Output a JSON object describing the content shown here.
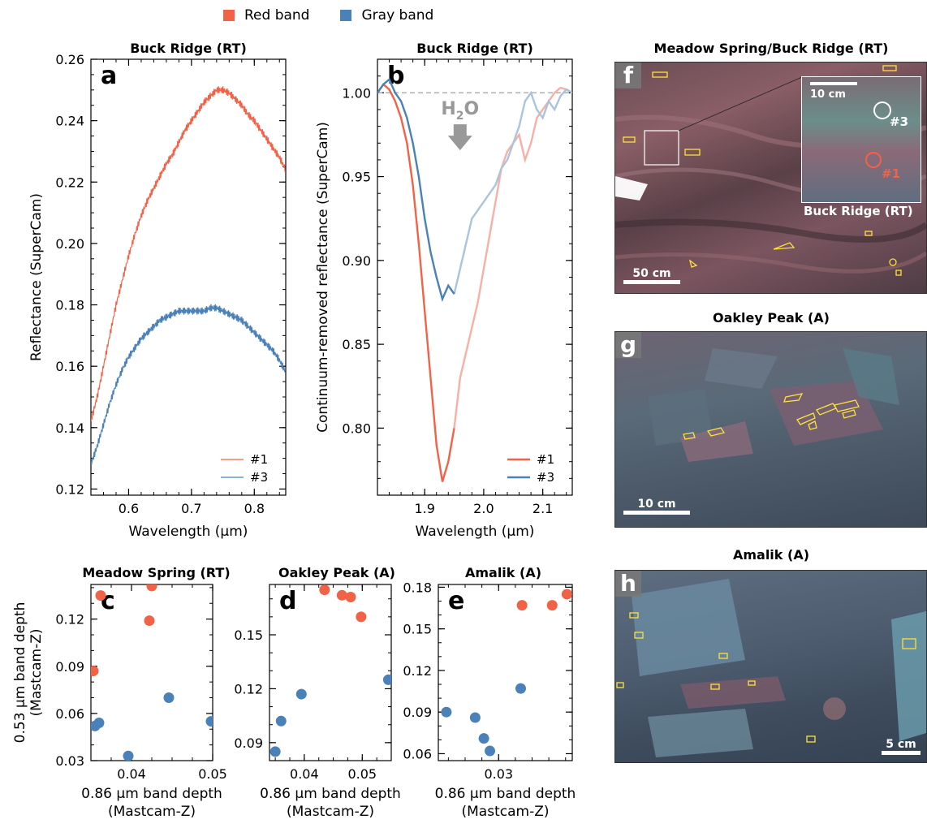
{
  "legend": {
    "items": [
      {
        "label": "Red band",
        "color": "#f26247"
      },
      {
        "label": "Gray band",
        "color": "#4a81b8"
      }
    ]
  },
  "colors": {
    "red": "#f26247",
    "blue": "#4a81b8",
    "red_light": "#f6b0a6",
    "blue_light": "#a9c4dc"
  },
  "chart_data": [
    {
      "panel": "a",
      "type": "line",
      "title": "Buck Ridge (RT)",
      "xlabel": "Wavelength (μm)",
      "ylabel": "Reflectance (SuperCam)",
      "xlim": [
        0.54,
        0.85
      ],
      "ylim": [
        0.118,
        0.26
      ],
      "xticks": [
        0.6,
        0.7,
        0.8
      ],
      "yticks": [
        0.12,
        0.14,
        0.16,
        0.18,
        0.2,
        0.22,
        0.24,
        0.26
      ],
      "series": [
        {
          "name": "#1",
          "color": "#f26247",
          "x": [
            0.54,
            0.55,
            0.56,
            0.57,
            0.58,
            0.59,
            0.6,
            0.61,
            0.62,
            0.63,
            0.64,
            0.65,
            0.66,
            0.67,
            0.68,
            0.69,
            0.7,
            0.71,
            0.72,
            0.73,
            0.74,
            0.75,
            0.76,
            0.77,
            0.78,
            0.79,
            0.8,
            0.81,
            0.82,
            0.83,
            0.84,
            0.85
          ],
          "y": [
            0.142,
            0.15,
            0.16,
            0.17,
            0.18,
            0.188,
            0.196,
            0.203,
            0.209,
            0.214,
            0.218,
            0.222,
            0.226,
            0.229,
            0.233,
            0.237,
            0.24,
            0.243,
            0.246,
            0.248,
            0.25,
            0.25,
            0.249,
            0.247,
            0.245,
            0.242,
            0.24,
            0.237,
            0.234,
            0.231,
            0.228,
            0.224
          ]
        },
        {
          "name": "#3",
          "color": "#4a81b8",
          "x": [
            0.54,
            0.55,
            0.56,
            0.57,
            0.58,
            0.59,
            0.6,
            0.61,
            0.62,
            0.63,
            0.64,
            0.65,
            0.66,
            0.67,
            0.68,
            0.69,
            0.7,
            0.71,
            0.72,
            0.73,
            0.74,
            0.75,
            0.76,
            0.77,
            0.78,
            0.79,
            0.8,
            0.81,
            0.82,
            0.83,
            0.84,
            0.85
          ],
          "y": [
            0.128,
            0.134,
            0.141,
            0.148,
            0.154,
            0.159,
            0.163,
            0.166,
            0.169,
            0.171,
            0.173,
            0.175,
            0.176,
            0.177,
            0.178,
            0.178,
            0.178,
            0.178,
            0.178,
            0.179,
            0.179,
            0.178,
            0.177,
            0.176,
            0.175,
            0.173,
            0.171,
            0.169,
            0.167,
            0.165,
            0.162,
            0.158
          ]
        }
      ],
      "legend_position": "bottom-right"
    },
    {
      "panel": "b",
      "type": "line",
      "title": "Buck Ridge (RT)",
      "xlabel": "Wavelength (μm)",
      "ylabel": "Continuum-removed reflectance (SuperCam)",
      "xlim": [
        1.82,
        2.15
      ],
      "ylim": [
        0.76,
        1.02
      ],
      "xticks": [
        1.9,
        2.0,
        2.1
      ],
      "yticks": [
        0.8,
        0.85,
        0.9,
        0.95,
        1.0
      ],
      "reference_line": 1.0,
      "annotation": "H2O",
      "series": [
        {
          "name": "#1",
          "color": "#f26247",
          "x": [
            1.82,
            1.83,
            1.84,
            1.85,
            1.86,
            1.87,
            1.88,
            1.89,
            1.9,
            1.91,
            1.92,
            1.93,
            1.94,
            1.95,
            1.96,
            1.97,
            1.98,
            1.99,
            2.0,
            2.01,
            2.02,
            2.03,
            2.04,
            2.05,
            2.06,
            2.07,
            2.08,
            2.09,
            2.1,
            2.11,
            2.12,
            2.13,
            2.14,
            2.15
          ],
          "y": [
            1.0,
            1.005,
            1.002,
            0.995,
            0.985,
            0.97,
            0.945,
            0.91,
            0.87,
            0.83,
            0.79,
            0.768,
            0.78,
            0.8,
            0.83,
            0.845,
            0.86,
            0.875,
            0.895,
            0.915,
            0.935,
            0.955,
            0.965,
            0.97,
            0.975,
            0.96,
            0.97,
            0.985,
            0.99,
            0.995,
            1.0,
            1.003,
            1.002,
            1.0
          ]
        },
        {
          "name": "#3",
          "color": "#4a81b8",
          "x": [
            1.82,
            1.83,
            1.84,
            1.85,
            1.86,
            1.87,
            1.88,
            1.89,
            1.9,
            1.91,
            1.92,
            1.93,
            1.94,
            1.95,
            1.96,
            1.97,
            1.98,
            1.99,
            2.0,
            2.01,
            2.02,
            2.03,
            2.04,
            2.05,
            2.06,
            2.07,
            2.08,
            2.09,
            2.1,
            2.11,
            2.12,
            2.13,
            2.14,
            2.15
          ],
          "y": [
            1.0,
            1.005,
            1.008,
            1.0,
            0.995,
            0.985,
            0.97,
            0.95,
            0.925,
            0.905,
            0.89,
            0.877,
            0.885,
            0.88,
            0.895,
            0.91,
            0.925,
            0.93,
            0.935,
            0.94,
            0.945,
            0.955,
            0.96,
            0.97,
            0.98,
            0.995,
            1.0,
            0.99,
            0.985,
            0.995,
            0.99,
            0.998,
            1.002,
            1.0
          ]
        }
      ],
      "light_segment_from_x": 1.95,
      "legend_position": "bottom-right"
    },
    {
      "panel": "c",
      "type": "scatter",
      "title": "Meadow Spring (RT)",
      "xlabel": "0.86 μm band depth (Mastcam-Z)",
      "ylabel": "0.53 μm band depth (Mastcam-Z)",
      "xlim": [
        0.035,
        0.05
      ],
      "ylim": [
        0.03,
        0.142
      ],
      "xticks": [
        0.04,
        0.05
      ],
      "yticks": [
        0.03,
        0.06,
        0.09,
        0.12
      ],
      "series": [
        {
          "name": "Red band",
          "color": "#f26247",
          "x": [
            0.0353,
            0.0362,
            0.0422,
            0.0425
          ],
          "y": [
            0.087,
            0.135,
            0.119,
            0.141
          ]
        },
        {
          "name": "Gray band",
          "color": "#4a81b8",
          "x": [
            0.0355,
            0.036,
            0.0396,
            0.0446,
            0.0498
          ],
          "y": [
            0.052,
            0.054,
            0.033,
            0.07,
            0.055
          ]
        }
      ]
    },
    {
      "panel": "d",
      "type": "scatter",
      "title": "Oakley Peak (A)",
      "xlabel": "0.86 μm band depth (Mastcam-Z)",
      "ylabel": "",
      "xlim": [
        0.034,
        0.055
      ],
      "ylim": [
        0.08,
        0.178
      ],
      "xticks": [
        0.04,
        0.05
      ],
      "yticks": [
        0.09,
        0.12,
        0.15
      ],
      "series": [
        {
          "name": "Red band",
          "color": "#f26247",
          "x": [
            0.0435,
            0.0465,
            0.048,
            0.0498
          ],
          "y": [
            0.175,
            0.172,
            0.171,
            0.16
          ]
        },
        {
          "name": "Gray band",
          "color": "#4a81b8",
          "x": [
            0.035,
            0.036,
            0.0395,
            0.0545
          ],
          "y": [
            0.085,
            0.102,
            0.117,
            0.125
          ]
        }
      ]
    },
    {
      "panel": "e",
      "type": "scatter",
      "title": "Amalik (A)",
      "xlabel": "0.86 μm band depth (Mastcam-Z)",
      "ylabel": "",
      "xlim": [
        0.021,
        0.041
      ],
      "ylim": [
        0.055,
        0.182
      ],
      "xticks": [
        0.03
      ],
      "yticks": [
        0.06,
        0.09,
        0.12,
        0.15,
        0.18
      ],
      "series": [
        {
          "name": "Red band",
          "color": "#f26247",
          "x": [
            0.0335,
            0.038,
            0.0402
          ],
          "y": [
            0.167,
            0.167,
            0.175
          ]
        },
        {
          "name": "Gray band",
          "color": "#4a81b8",
          "x": [
            0.0222,
            0.0265,
            0.0278,
            0.0287,
            0.0333
          ],
          "y": [
            0.09,
            0.086,
            0.071,
            0.062,
            0.107
          ]
        }
      ]
    }
  ],
  "photos": {
    "f": {
      "label": "f",
      "title": "Meadow Spring/Buck Ridge (RT)",
      "scale": "50 cm",
      "inset_scale": "10 cm",
      "inset_title": "Buck Ridge (RT)",
      "marker1": "#1",
      "marker3": "#3"
    },
    "g": {
      "label": "g",
      "title": "Oakley Peak (A)",
      "scale": "10 cm"
    },
    "h": {
      "label": "h",
      "title": "Amalik (A)",
      "scale": "5 cm"
    }
  },
  "panel_letters": {
    "a": "a",
    "b": "b",
    "c": "c",
    "d": "d",
    "e": "e"
  },
  "h2o": "H",
  "h2o_sub": "2",
  "h2o_o": "O"
}
